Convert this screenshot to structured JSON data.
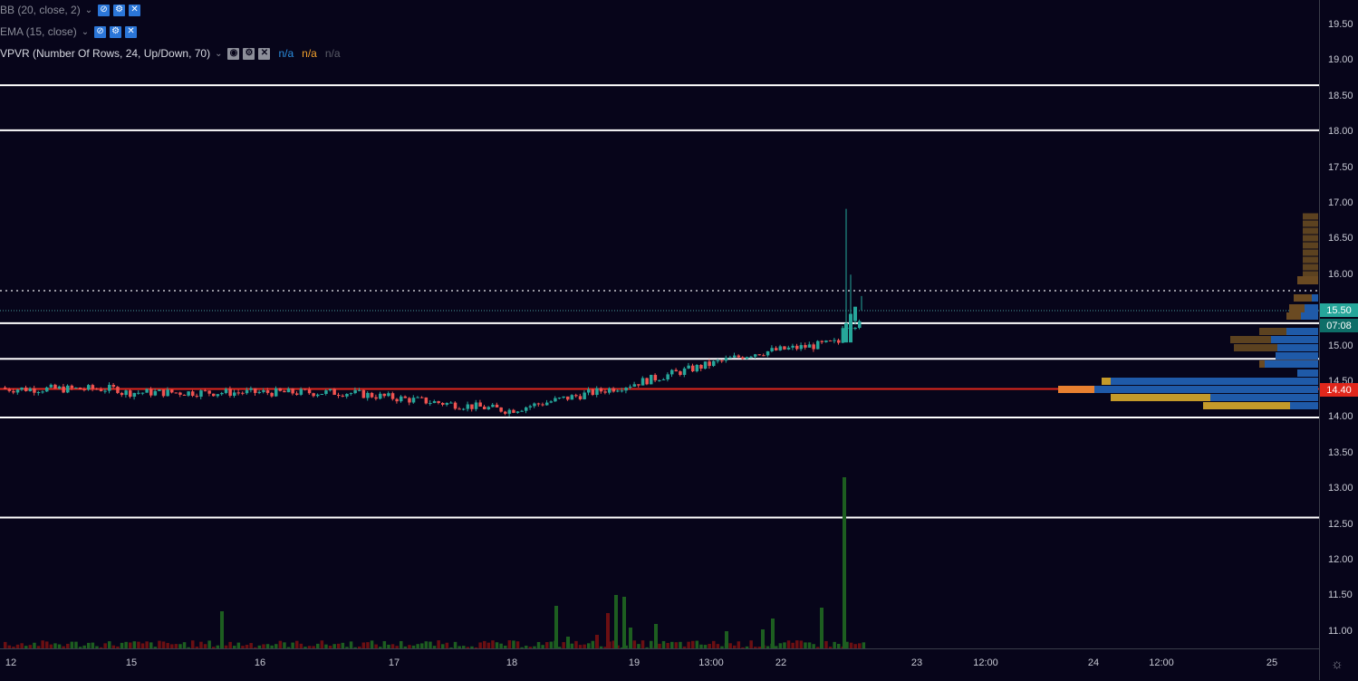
{
  "indicators": [
    {
      "name": "BB (20, close, 2)",
      "buttons": [
        "eye-off",
        "gear",
        "close"
      ],
      "button_style": "blue"
    },
    {
      "name": "EMA (15, close)",
      "buttons": [
        "eye-off",
        "gear",
        "close"
      ],
      "button_style": "blue"
    },
    {
      "name": "VPVR (Number Of Rows, 24, Up/Down, 70)",
      "buttons": [
        "eye",
        "gear",
        "close"
      ],
      "button_style": "gray",
      "values": [
        {
          "text": "n/a",
          "color": "#2b8fe0"
        },
        {
          "text": "n/a",
          "color": "#f2a02c"
        },
        {
          "text": "n/a",
          "color": "#5a5c68"
        }
      ]
    }
  ],
  "price_axis": {
    "ticks": [
      "19.50",
      "19.00",
      "18.50",
      "18.00",
      "17.50",
      "17.00",
      "16.50",
      "16.00",
      "15.50",
      "15.00",
      "14.50",
      "14.00",
      "13.50",
      "13.00",
      "12.50",
      "12.00",
      "11.50",
      "11.00"
    ],
    "current_price": "15.50",
    "countdown": "07:08",
    "poc_price": "14.40"
  },
  "time_axis": {
    "labels": [
      "12",
      "15",
      "16",
      "17",
      "18",
      "19",
      "13:00",
      "22",
      "23",
      "12:00",
      "24",
      "12:00",
      "25"
    ]
  },
  "chart_data": {
    "type": "candlestick",
    "horizontal_levels": [
      18.65,
      18.02,
      15.32,
      14.82,
      14.0,
      12.6
    ],
    "poc_level": 14.4,
    "current_price": 15.5,
    "ylim": [
      10.75,
      19.8
    ],
    "colors": {
      "up": "#26a69a",
      "down": "#ef5350",
      "poc": "#e0271c",
      "levels": "#ffffff",
      "vol_up": "#1d5e20",
      "vol_down": "#6b0f12",
      "vp_up": "#1f5aa8",
      "vp_up_va": "#1c3f78",
      "vp_down": "#c49a2a",
      "vp_down_out": "#5c4220"
    },
    "spike_candle": {
      "open": 15.05,
      "high": 16.92,
      "low": 15.05,
      "close": 15.32,
      "volume": 13.2
    }
  }
}
